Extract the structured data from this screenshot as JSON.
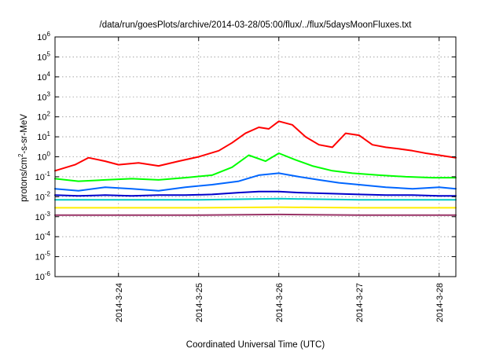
{
  "chart_data": {
    "type": "line",
    "title": "/data/run/goesPlots/archive/2014-03-28/05:00/flux/../flux/5daysMoonFluxes.txt",
    "xlabel": "Coordinated Universal Time (UTC)",
    "ylabel": {
      "prefix": "protons/cm",
      "superscript": "2",
      "suffix": "-s-sr-MeV"
    },
    "y_scale": "log",
    "ylim": [
      1e-06,
      1000000
    ],
    "y_tick_labels": [
      {
        "base": "10",
        "exp": "-6",
        "value": 1e-06
      },
      {
        "base": "10",
        "exp": "-5",
        "value": 1e-05
      },
      {
        "base": "10",
        "exp": "-4",
        "value": 0.0001
      },
      {
        "base": "10",
        "exp": "-3",
        "value": 0.001
      },
      {
        "base": "10",
        "exp": "-2",
        "value": 0.01
      },
      {
        "base": "10",
        "exp": "-1",
        "value": 0.1
      },
      {
        "base": "10",
        "exp": "0",
        "value": 1
      },
      {
        "base": "10",
        "exp": "1",
        "value": 10
      },
      {
        "base": "10",
        "exp": "2",
        "value": 100
      },
      {
        "base": "10",
        "exp": "3",
        "value": 1000
      },
      {
        "base": "10",
        "exp": "4",
        "value": 10000
      },
      {
        "base": "10",
        "exp": "5",
        "value": 100000
      },
      {
        "base": "10",
        "exp": "6",
        "value": 1000000
      }
    ],
    "xlim": [
      "2014-03-23 05:00",
      "2014-03-28 05:00"
    ],
    "x_ticks": [
      {
        "label": "2014-3-24",
        "time": "2014-03-24 00:00"
      },
      {
        "label": "2014-3-25",
        "time": "2014-03-25 00:00"
      },
      {
        "label": "2014-3-26",
        "time": "2014-03-26 00:00"
      },
      {
        "label": "2014-3-27",
        "time": "2014-03-27 00:00"
      },
      {
        "label": "2014-3-28",
        "time": "2014-03-28 00:00"
      }
    ],
    "grid": true,
    "series": [
      {
        "color": "#ff0000",
        "x": [
          "2014-03-23 05:00",
          "2014-03-23 11:00",
          "2014-03-23 15:00",
          "2014-03-23 20:00",
          "2014-03-24 00:00",
          "2014-03-24 06:00",
          "2014-03-24 12:00",
          "2014-03-24 18:00",
          "2014-03-25 00:00",
          "2014-03-25 06:00",
          "2014-03-25 10:00",
          "2014-03-25 14:00",
          "2014-03-25 18:00",
          "2014-03-25 21:00",
          "2014-03-26 00:00",
          "2014-03-26 04:00",
          "2014-03-26 08:00",
          "2014-03-26 12:00",
          "2014-03-26 16:00",
          "2014-03-26 20:00",
          "2014-03-27 00:00",
          "2014-03-27 04:00",
          "2014-03-27 08:00",
          "2014-03-27 12:00",
          "2014-03-27 16:00",
          "2014-03-27 20:00",
          "2014-03-28 00:00",
          "2014-03-28 05:00"
        ],
        "y": [
          0.2,
          0.4,
          0.9,
          0.6,
          0.4,
          0.5,
          0.35,
          0.6,
          1.0,
          2.0,
          5.0,
          15,
          30,
          25,
          60,
          40,
          10,
          4,
          3,
          15,
          12,
          4,
          3,
          2.5,
          2.0,
          1.5,
          1.2,
          0.9
        ]
      },
      {
        "color": "#00ff00",
        "x": [
          "2014-03-23 05:00",
          "2014-03-23 12:00",
          "2014-03-23 20:00",
          "2014-03-24 04:00",
          "2014-03-24 12:00",
          "2014-03-24 20:00",
          "2014-03-25 04:00",
          "2014-03-25 10:00",
          "2014-03-25 15:00",
          "2014-03-25 20:00",
          "2014-03-26 00:00",
          "2014-03-26 05:00",
          "2014-03-26 10:00",
          "2014-03-26 16:00",
          "2014-03-26 22:00",
          "2014-03-27 06:00",
          "2014-03-27 14:00",
          "2014-03-27 22:00",
          "2014-03-28 05:00"
        ],
        "y": [
          0.08,
          0.06,
          0.07,
          0.08,
          0.07,
          0.09,
          0.12,
          0.3,
          1.2,
          0.6,
          1.5,
          0.7,
          0.35,
          0.2,
          0.15,
          0.12,
          0.1,
          0.09,
          0.09
        ]
      },
      {
        "color": "#0066ff",
        "x": [
          "2014-03-23 05:00",
          "2014-03-23 12:00",
          "2014-03-23 20:00",
          "2014-03-24 04:00",
          "2014-03-24 12:00",
          "2014-03-24 20:00",
          "2014-03-25 04:00",
          "2014-03-25 12:00",
          "2014-03-25 18:00",
          "2014-03-26 00:00",
          "2014-03-26 06:00",
          "2014-03-26 12:00",
          "2014-03-26 18:00",
          "2014-03-27 00:00",
          "2014-03-27 08:00",
          "2014-03-27 16:00",
          "2014-03-28 00:00",
          "2014-03-28 05:00"
        ],
        "y": [
          0.025,
          0.02,
          0.03,
          0.025,
          0.02,
          0.03,
          0.04,
          0.06,
          0.12,
          0.15,
          0.1,
          0.07,
          0.05,
          0.04,
          0.03,
          0.025,
          0.03,
          0.025
        ]
      },
      {
        "color": "#0000cc",
        "x": [
          "2014-03-23 05:00",
          "2014-03-23 12:00",
          "2014-03-23 20:00",
          "2014-03-24 04:00",
          "2014-03-24 12:00",
          "2014-03-24 20:00",
          "2014-03-25 04:00",
          "2014-03-25 12:00",
          "2014-03-25 18:00",
          "2014-03-26 00:00",
          "2014-03-26 06:00",
          "2014-03-26 12:00",
          "2014-03-26 18:00",
          "2014-03-27 00:00",
          "2014-03-27 08:00",
          "2014-03-27 16:00",
          "2014-03-28 00:00",
          "2014-03-28 05:00"
        ],
        "y": [
          0.012,
          0.011,
          0.012,
          0.011,
          0.012,
          0.012,
          0.013,
          0.016,
          0.018,
          0.018,
          0.016,
          0.015,
          0.014,
          0.013,
          0.012,
          0.012,
          0.011,
          0.011
        ]
      },
      {
        "color": "#00c8c8",
        "x": [
          "2014-03-23 05:00",
          "2014-03-24 00:00",
          "2014-03-25 00:00",
          "2014-03-26 00:00",
          "2014-03-27 00:00",
          "2014-03-28 00:00",
          "2014-03-28 05:00"
        ],
        "y": [
          0.007,
          0.007,
          0.007,
          0.008,
          0.007,
          0.007,
          0.007
        ]
      },
      {
        "color": "#ffee00",
        "x": [
          "2014-03-23 05:00",
          "2014-03-24 00:00",
          "2014-03-25 00:00",
          "2014-03-26 00:00",
          "2014-03-27 00:00",
          "2014-03-28 00:00",
          "2014-03-28 05:00"
        ],
        "y": [
          0.0028,
          0.0028,
          0.0028,
          0.003,
          0.0028,
          0.0028,
          0.0028
        ]
      },
      {
        "color": "#993366",
        "x": [
          "2014-03-23 05:00",
          "2014-03-24 00:00",
          "2014-03-25 00:00",
          "2014-03-26 00:00",
          "2014-03-27 00:00",
          "2014-03-28 00:00",
          "2014-03-28 05:00"
        ],
        "y": [
          0.0012,
          0.0012,
          0.0012,
          0.0013,
          0.0012,
          0.0012,
          0.0012
        ]
      }
    ]
  }
}
